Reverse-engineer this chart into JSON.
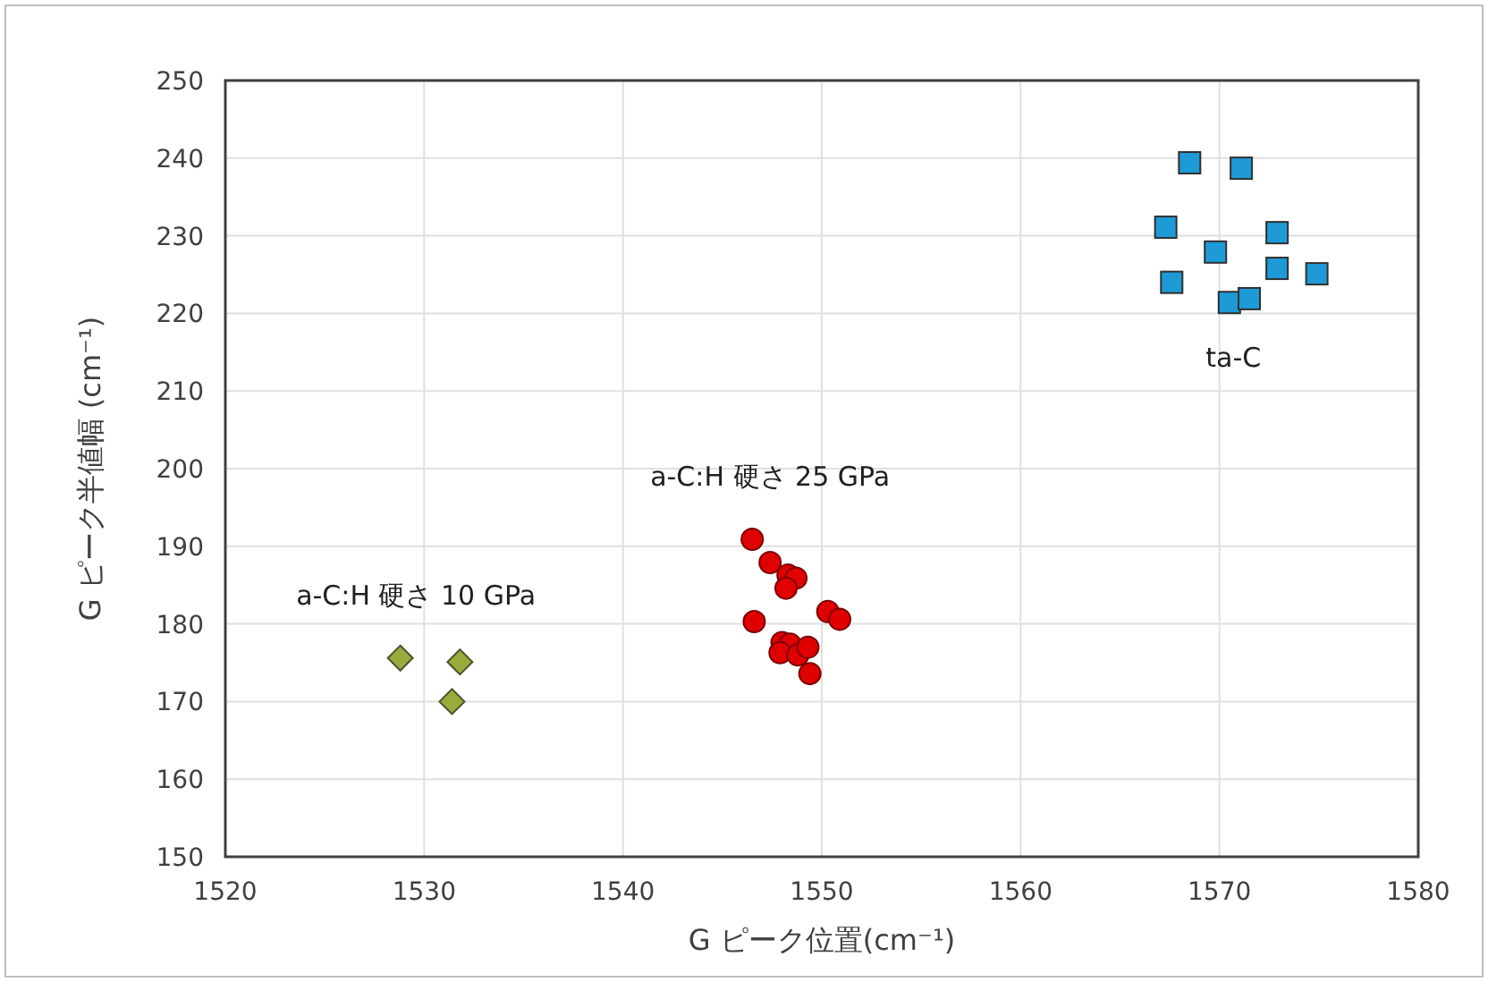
{
  "chart_data": {
    "type": "scatter",
    "xlabel": "G ピーク位置(cm⁻¹)",
    "ylabel": "G ピーク半値幅 (cm⁻¹)",
    "xlim": [
      1520,
      1580
    ],
    "xticks": [
      1520,
      1530,
      1540,
      1550,
      1560,
      1570,
      1580
    ],
    "ylim": [
      150,
      250
    ],
    "yticks": [
      150,
      160,
      170,
      180,
      190,
      200,
      210,
      220,
      230,
      240,
      250
    ],
    "grid": true,
    "series": [
      {
        "color": "#1e9ad6",
        "marker": "square",
        "x": [
          1568.5,
          1571.1,
          1567.3,
          1572.9,
          1569.8,
          1567.6,
          1572.9,
          1574.9,
          1570.5,
          1571.5
        ],
        "values": [
          239.4,
          238.7,
          231.1,
          230.4,
          227.9,
          224.0,
          225.8,
          225.1,
          221.4,
          221.9
        ]
      },
      {
        "color": "#e00000",
        "marker": "circle",
        "x": [
          1546.5,
          1547.4,
          1548.3,
          1548.7,
          1548.2,
          1546.6,
          1550.3,
          1550.9,
          1548.0,
          1548.4,
          1547.9,
          1548.8,
          1549.3,
          1549.4
        ],
        "values": [
          190.9,
          187.9,
          186.3,
          185.9,
          184.6,
          180.3,
          181.6,
          180.6,
          177.6,
          177.4,
          176.3,
          176.0,
          177.0,
          173.6
        ]
      },
      {
        "color": "#9aab3c",
        "marker": "diamond",
        "x": [
          1528.8,
          1531.8,
          1531.4
        ],
        "values": [
          175.6,
          175.1,
          170.0
        ]
      }
    ],
    "annotations": [
      "ta-C",
      "a-C:H 硬さ 25 GPa",
      "a-C:H 硬さ 10 GPa"
    ]
  }
}
